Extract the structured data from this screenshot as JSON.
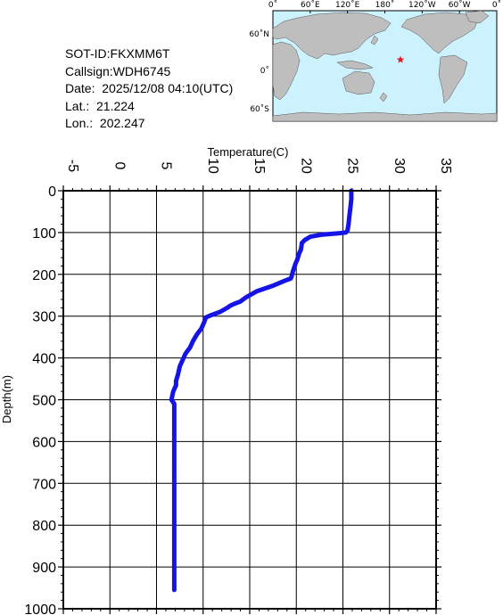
{
  "station_info": {
    "sot_id": "SOT-ID:FKXMM6T",
    "callsign": "Callsign:WDH6745",
    "date": "Date:  2025/12/08 04:10(UTC)",
    "lat": "Lat.:  21.224",
    "lon": "Lon.:  202.247"
  },
  "map": {
    "top_labels": [
      "0˚",
      "60˚E",
      "120˚E",
      "180˚",
      "120˚W",
      "60˚W",
      "0˚"
    ],
    "lat_labels": [
      "60˚N",
      "0˚",
      "60˚S"
    ],
    "ocean_color": "#ccf2fe",
    "land_color": "#bebebe",
    "marker_color": "#e8141e",
    "marker_icon": "star-icon",
    "marker_lon": 202.247,
    "marker_lat": 21.224
  },
  "chart_data": {
    "type": "line",
    "xlabel": "Temperature(C)",
    "ylabel": "Depth(m)",
    "xlim": [
      -5,
      35
    ],
    "ylim": [
      1000,
      0
    ],
    "x_ticks": [
      -5,
      0,
      5,
      10,
      15,
      20,
      25,
      30,
      35
    ],
    "y_ticks": [
      0,
      100,
      200,
      300,
      400,
      500,
      600,
      700,
      800,
      900,
      1000
    ],
    "grid": true,
    "line_color": "#1414e6",
    "series": [
      {
        "x": [
          25.9,
          25.9,
          25.8,
          25.7,
          25.6,
          25.5,
          25.3,
          24.5,
          22.8,
          21.5,
          20.9,
          20.6,
          20.5,
          20.3,
          20.1,
          19.9,
          19.6,
          19.5,
          19.4,
          18.8,
          17.4,
          15.8,
          14.6,
          14.0,
          13.4,
          12.9,
          12.6,
          11.8,
          10.8,
          10.3,
          10.1,
          9.8,
          9.3,
          8.9,
          8.6,
          8.1,
          7.8,
          7.5,
          7.3,
          7.1,
          7.1,
          6.8,
          6.6,
          6.9,
          6.9,
          6.9,
          6.9,
          6.9,
          6.9,
          6.9
        ],
        "y": [
          0,
          20,
          40,
          60,
          80,
          95,
          100,
          102,
          105,
          110,
          118,
          125,
          140,
          150,
          165,
          175,
          195,
          205,
          210,
          215,
          228,
          240,
          255,
          265,
          270,
          275,
          280,
          290,
          298,
          303,
          315,
          330,
          345,
          360,
          375,
          390,
          405,
          420,
          440,
          455,
          465,
          480,
          500,
          510,
          550,
          650,
          750,
          850,
          920,
          955
        ]
      }
    ]
  }
}
